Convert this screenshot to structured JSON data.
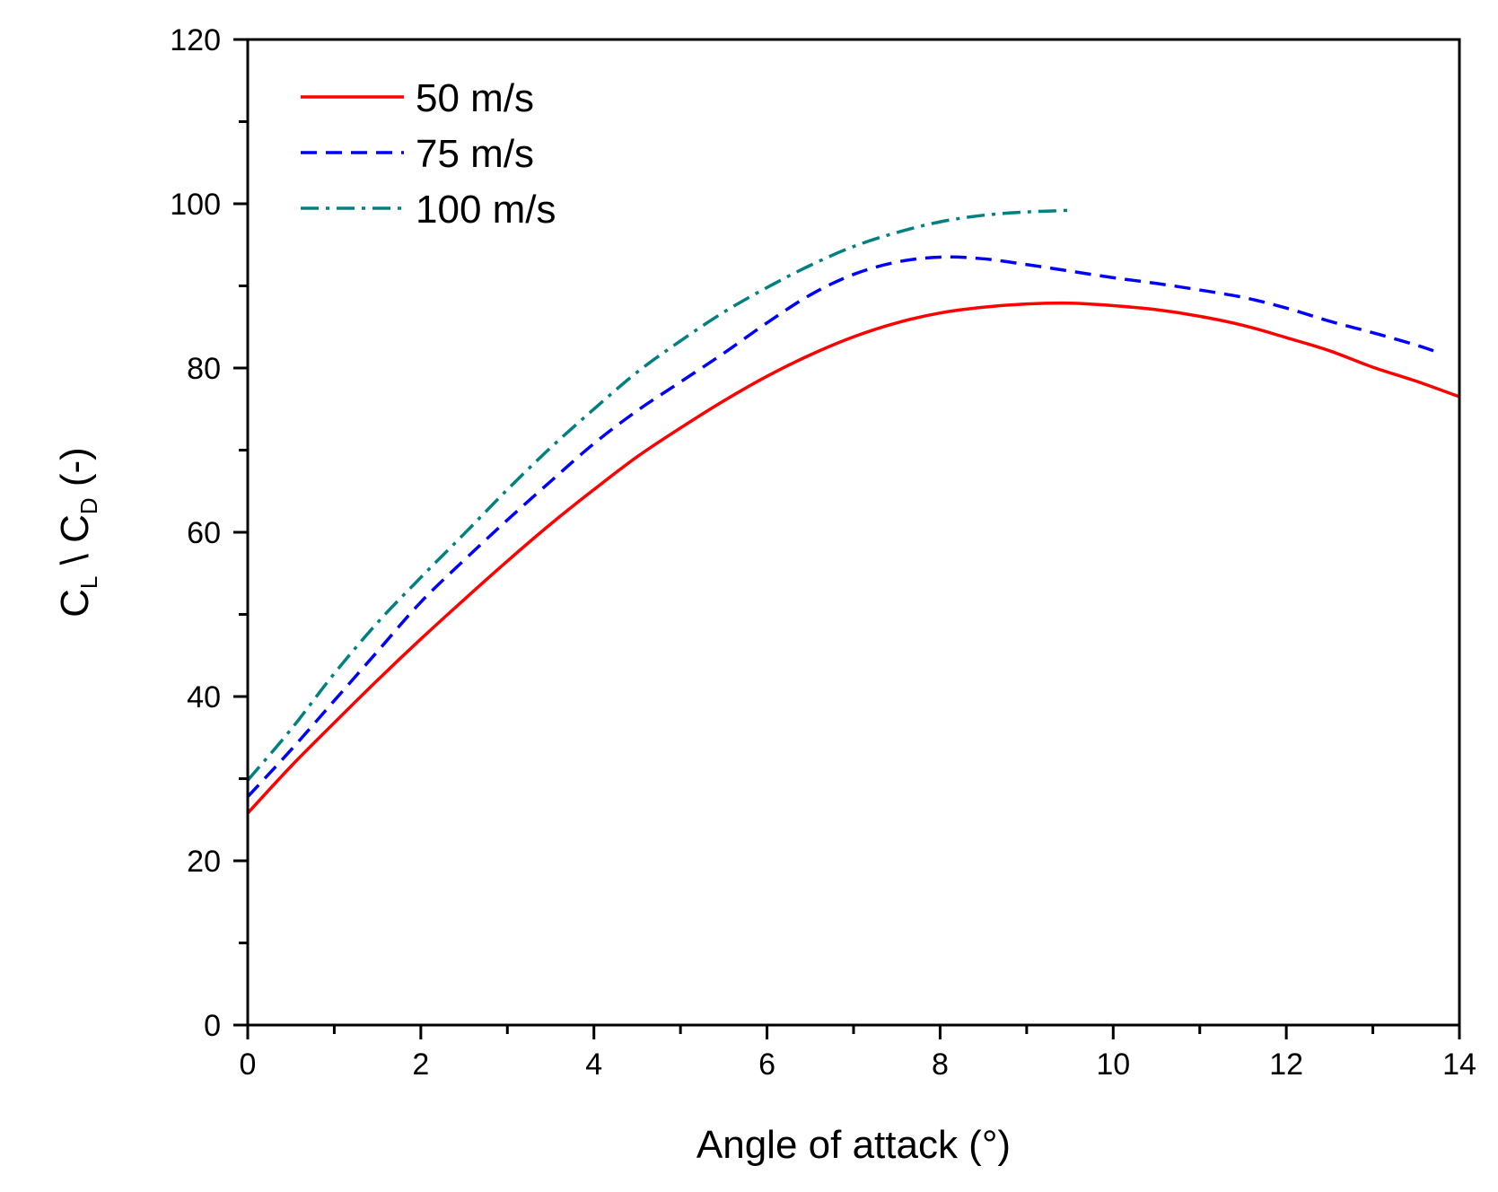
{
  "chart_data": {
    "type": "line",
    "title": "",
    "xlabel": "Angle of attack (°)",
    "ylabel": {
      "c1": "C",
      "sub1": "L",
      "sep": " \\ ",
      "c2": "C",
      "sub2": "D",
      "unit": " (-)"
    },
    "xlim": [
      0,
      14
    ],
    "ylim": [
      0,
      120
    ],
    "x_ticks": [
      0,
      2,
      4,
      6,
      8,
      10,
      12,
      14
    ],
    "y_ticks": [
      0,
      20,
      40,
      60,
      80,
      100,
      120
    ],
    "grid": false,
    "legend_position": "top-left",
    "series": [
      {
        "name": "50 m/s",
        "color": "#ff0000",
        "style": "solid",
        "x": [
          0,
          0.5,
          1,
          1.5,
          2,
          2.5,
          3,
          3.5,
          4,
          4.5,
          5,
          5.5,
          6,
          6.5,
          7,
          7.5,
          8,
          8.5,
          9,
          9.5,
          10,
          10.5,
          11,
          11.5,
          12,
          12.5,
          13,
          13.5,
          14
        ],
        "y": [
          25.8,
          31.5,
          36.8,
          42,
          47,
          51.8,
          56.5,
          61,
          65.2,
          69.2,
          72.7,
          76,
          79,
          81.6,
          83.8,
          85.5,
          86.7,
          87.4,
          87.8,
          87.9,
          87.6,
          87.1,
          86.3,
          85.2,
          83.7,
          82.1,
          80.1,
          78.4,
          76.5
        ]
      },
      {
        "name": "75 m/s",
        "color": "#0000ff",
        "style": "dashed",
        "x": [
          0,
          0.5,
          1,
          1.5,
          2,
          2.5,
          3,
          3.5,
          4,
          4.5,
          5,
          5.5,
          6,
          6.5,
          7,
          7.5,
          8,
          8.5,
          9,
          9.5,
          10,
          10.5,
          11,
          11.5,
          12,
          12.5,
          13,
          13.5,
          13.7
        ],
        "y": [
          27.8,
          33.5,
          39.5,
          45.5,
          51.5,
          56.6,
          61.5,
          66.2,
          70.8,
          74.8,
          78.3,
          81.8,
          85.5,
          88.9,
          91.4,
          92.9,
          93.5,
          93.3,
          92.6,
          91.8,
          91,
          90.3,
          89.5,
          88.6,
          87.3,
          85.7,
          84.3,
          82.8,
          82.1
        ]
      },
      {
        "name": "100 m/s",
        "color": "#008080",
        "style": "dashdot",
        "x": [
          0,
          0.5,
          1,
          1.5,
          2,
          2.5,
          3,
          3.5,
          4,
          4.5,
          5,
          5.5,
          6,
          6.5,
          7,
          7.5,
          8,
          8.5,
          9,
          9.5
        ],
        "y": [
          29.8,
          36,
          42.8,
          49,
          54.5,
          59.8,
          65.2,
          70.3,
          75,
          79.5,
          83.3,
          86.8,
          89.8,
          92.5,
          94.8,
          96.5,
          97.8,
          98.6,
          99,
          99.2
        ]
      }
    ]
  }
}
